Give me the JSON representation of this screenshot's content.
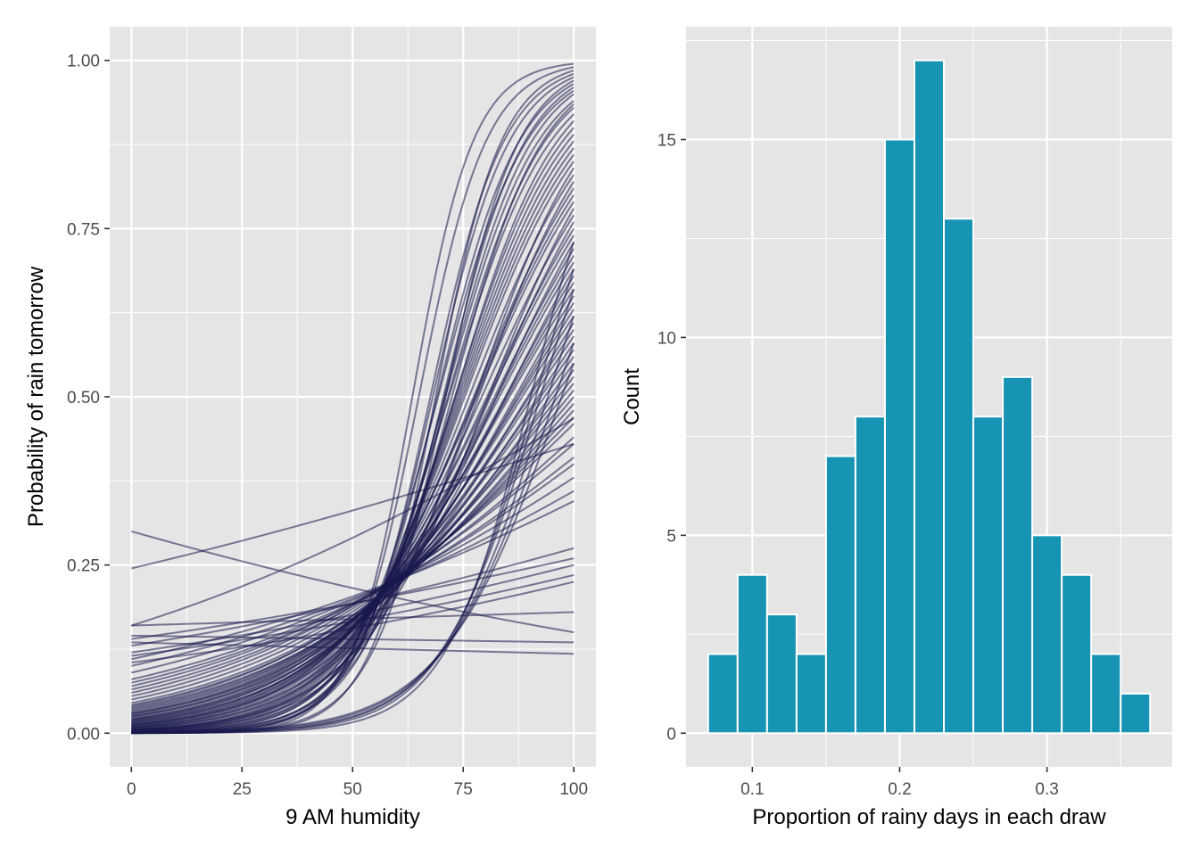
{
  "chart_data": [
    {
      "type": "line",
      "panel": "left",
      "xlabel": "9 AM humidity",
      "ylabel": "Probability of rain tomorrow",
      "xlim": [
        -4.9,
        105
      ],
      "ylim": [
        -0.05,
        1.05
      ],
      "x_ticks": [
        0,
        25,
        50,
        75,
        100
      ],
      "x_tick_labels": [
        "0",
        "25",
        "50",
        "75",
        "100"
      ],
      "y_ticks": [
        0,
        0.25,
        0.5,
        0.75,
        1
      ],
      "y_tick_labels": [
        "0.00",
        "0.25",
        "0.50",
        "0.75",
        "1.00"
      ],
      "grid": true,
      "line_color": "#191a4f",
      "line_opacity": 0.55,
      "curve_form": "p = 1 / (1 + exp(-(a + b * humidity)))",
      "series": [
        {
          "p0": 0.0001,
          "p100": 0.995
        },
        {
          "p0": 0.0002,
          "p100": 0.99
        },
        {
          "p0": 0.0001,
          "p100": 0.985
        },
        {
          "p0": 0.0003,
          "p100": 0.98
        },
        {
          "p0": 0.0004,
          "p100": 0.975
        },
        {
          "p0": 0.0002,
          "p100": 0.97
        },
        {
          "p0": 0.0006,
          "p100": 0.965
        },
        {
          "p0": 0.0005,
          "p100": 0.96
        },
        {
          "p0": 0.001,
          "p100": 0.955
        },
        {
          "p0": 0.0008,
          "p100": 0.95
        },
        {
          "p0": 0.0012,
          "p100": 0.94
        },
        {
          "p0": 0.0009,
          "p100": 0.935
        },
        {
          "p0": 0.0015,
          "p100": 0.93
        },
        {
          "p0": 0.002,
          "p100": 0.92
        },
        {
          "p0": 0.0018,
          "p100": 0.91
        },
        {
          "p0": 0.0025,
          "p100": 0.9
        },
        {
          "p0": 0.003,
          "p100": 0.89
        },
        {
          "p0": 0.0035,
          "p100": 0.88
        },
        {
          "p0": 0.004,
          "p100": 0.87
        },
        {
          "p0": 0.0045,
          "p100": 0.86
        },
        {
          "p0": 0.005,
          "p100": 0.85
        },
        {
          "p0": 0.003,
          "p100": 0.84
        },
        {
          "p0": 0.006,
          "p100": 0.83
        },
        {
          "p0": 0.004,
          "p100": 0.82
        },
        {
          "p0": 0.007,
          "p100": 0.81
        },
        {
          "p0": 0.008,
          "p100": 0.8
        },
        {
          "p0": 0.009,
          "p100": 0.79
        },
        {
          "p0": 0.005,
          "p100": 0.78
        },
        {
          "p0": 0.01,
          "p100": 0.77
        },
        {
          "p0": 0.007,
          "p100": 0.76
        },
        {
          "p0": 0.011,
          "p100": 0.75
        },
        {
          "p0": 0.012,
          "p100": 0.74
        },
        {
          "p0": 0.009,
          "p100": 0.73
        },
        {
          "p0": 0.013,
          "p100": 0.72
        },
        {
          "p0": 0.014,
          "p100": 0.71
        },
        {
          "p0": 0.015,
          "p100": 0.7
        },
        {
          "p0": 0.012,
          "p100": 0.69
        },
        {
          "p0": 0.016,
          "p100": 0.68
        },
        {
          "p0": 0.018,
          "p100": 0.67
        },
        {
          "p0": 0.02,
          "p100": 0.66
        },
        {
          "p0": 0.017,
          "p100": 0.65
        },
        {
          "p0": 0.019,
          "p100": 0.64
        },
        {
          "p0": 0.022,
          "p100": 0.63
        },
        {
          "p0": 0.024,
          "p100": 0.62
        },
        {
          "p0": 0.021,
          "p100": 0.61
        },
        {
          "p0": 0.026,
          "p100": 0.6
        },
        {
          "p0": 0.028,
          "p100": 0.59
        },
        {
          "p0": 0.025,
          "p100": 0.58
        },
        {
          "p0": 0.03,
          "p100": 0.57
        },
        {
          "p0": 0.032,
          "p100": 0.56
        },
        {
          "p0": 0.029,
          "p100": 0.55
        },
        {
          "p0": 0.034,
          "p100": 0.54
        },
        {
          "p0": 0.036,
          "p100": 0.53
        },
        {
          "p0": 0.04,
          "p100": 0.52
        },
        {
          "p0": 0.038,
          "p100": 0.51
        },
        {
          "p0": 0.042,
          "p100": 0.5
        },
        {
          "p0": 0.045,
          "p100": 0.49
        },
        {
          "p0": 0.05,
          "p100": 0.48
        },
        {
          "p0": 0.055,
          "p100": 0.47
        },
        {
          "p0": 0.06,
          "p100": 0.46
        },
        {
          "p0": 0.065,
          "p100": 0.44
        },
        {
          "p0": 0.07,
          "p100": 0.43
        },
        {
          "p0": 0.075,
          "p100": 0.41
        },
        {
          "p0": 0.08,
          "p100": 0.4
        },
        {
          "p0": 0.09,
          "p100": 0.38
        },
        {
          "p0": 0.1,
          "p100": 0.36
        },
        {
          "p0": 0.11,
          "p100": 0.345
        },
        {
          "p0": 0.13,
          "p100": 0.275
        },
        {
          "p0": 0.14,
          "p100": 0.26
        },
        {
          "p0": 0.12,
          "p100": 0.25
        },
        {
          "p0": 0.115,
          "p100": 0.235
        },
        {
          "p0": 0.105,
          "p100": 0.225
        },
        {
          "p0": 0.16,
          "p100": 0.18
        },
        {
          "p0": 0.145,
          "p100": 0.135
        },
        {
          "p0": 0.135,
          "p100": 0.118
        },
        {
          "p0": 0.16,
          "p100": 0.468
        },
        {
          "p0": 0.245,
          "p100": 0.43
        },
        {
          "p0": 0.3,
          "p100": 0.15
        },
        {
          "p0": 0.0001,
          "p100": 0.73
        },
        {
          "p0": 0.0002,
          "p100": 0.69
        },
        {
          "p0": 0.0003,
          "p100": 0.66
        },
        {
          "p0": 0.0004,
          "p100": 0.62
        },
        {
          "p0": 0.0006,
          "p100": 0.58
        },
        {
          "p0": 0.0008,
          "p100": 0.55
        }
      ]
    },
    {
      "type": "bar",
      "panel": "right",
      "subtype": "histogram",
      "xlabel": "Proportion of rainy days in each draw",
      "ylabel": "Count",
      "xlim": [
        0.055,
        0.385
      ],
      "ylim": [
        -0.85,
        17.85
      ],
      "x_ticks": [
        0.1,
        0.2,
        0.3
      ],
      "x_tick_labels": [
        "0.1",
        "0.2",
        "0.3"
      ],
      "y_ticks": [
        0,
        5,
        10,
        15
      ],
      "y_tick_labels": [
        "0",
        "5",
        "10",
        "15"
      ],
      "grid": true,
      "bar_color": "#1793b3",
      "bar_outline": "#ffffff",
      "bin_width": 0.02,
      "bin_start": 0.07,
      "counts": [
        2,
        4,
        3,
        2,
        7,
        8,
        15,
        17,
        13,
        8,
        9,
        5,
        4,
        2,
        1
      ]
    }
  ]
}
